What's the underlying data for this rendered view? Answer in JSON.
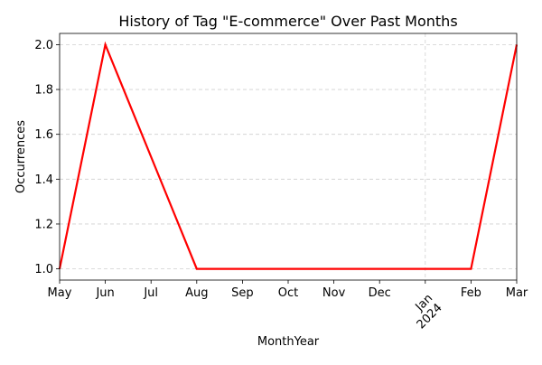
{
  "chart_data": {
    "type": "line",
    "title": "History of Tag \"E-commerce\" Over Past Months",
    "xlabel": "MonthYear",
    "ylabel": "Occurrences",
    "x": [
      "2023-05",
      "2023-06",
      "2023-07",
      "2023-08",
      "2023-09",
      "2023-10",
      "2023-11",
      "2023-12",
      "2024-01",
      "2024-02",
      "2024-03"
    ],
    "series": [
      {
        "values": [
          1.0,
          2.0,
          1.5,
          1.0,
          1.0,
          1.0,
          1.0,
          1.0,
          1.0,
          1.0,
          2.0
        ],
        "color": "#ff0000"
      }
    ],
    "x_tick_labels": [
      "May",
      "Jun",
      "Jul",
      "Aug",
      "Sep",
      "Oct",
      "Nov",
      "Dec",
      "Jan\n2024",
      "Feb",
      "Mar"
    ],
    "y_ticks": [
      "1.0",
      "1.2",
      "1.4",
      "1.6",
      "1.8",
      "2.0"
    ],
    "ylim": [
      0.95,
      2.05
    ],
    "grid": true
  }
}
